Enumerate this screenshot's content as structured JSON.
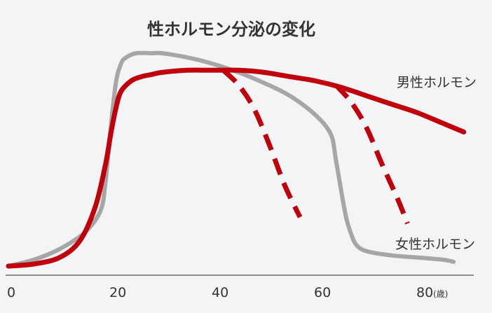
{
  "chart_data": {
    "type": "line",
    "title": "性ホルモン分泌の変化",
    "xlabel": "",
    "ylabel": "",
    "x_unit": "(歳)",
    "xlim": [
      0,
      90
    ],
    "ylim": [
      0,
      100
    ],
    "x_ticks": [
      "0",
      "20",
      "40",
      "60",
      "80"
    ],
    "y_axis_shown": false,
    "grid": false,
    "colors": {
      "female": "#a6a6a6",
      "male": "#c0000a",
      "background": "#f3f4f6",
      "axis": "#555555"
    },
    "series": [
      {
        "name": "女性ホルモン",
        "style": "solid",
        "x": [
          0,
          5,
          10,
          15,
          18,
          19,
          20,
          21,
          22,
          23,
          25,
          28,
          30,
          35,
          40,
          45,
          50,
          55,
          60,
          63,
          64,
          65,
          66,
          67,
          68,
          70,
          75,
          80,
          85,
          87
        ],
        "y": [
          0,
          3,
          8,
          16,
          26,
          40,
          65,
          86,
          95,
          98,
          100,
          100,
          100,
          98,
          95,
          91,
          86,
          80,
          71,
          62,
          50,
          36,
          23,
          15,
          10,
          7,
          5,
          4,
          3,
          2
        ]
      },
      {
        "name": "男性ホルモン",
        "style": "solid",
        "x": [
          0,
          5,
          10,
          14,
          17,
          19,
          20,
          21,
          22,
          24,
          26,
          28,
          30,
          35,
          40,
          45,
          50,
          55,
          60,
          65,
          70,
          75,
          80,
          85,
          89
        ],
        "y": [
          0,
          1,
          4,
          12,
          28,
          48,
          62,
          74,
          82,
          87,
          89,
          90,
          91,
          92,
          92,
          92,
          91,
          89,
          87,
          84,
          80,
          76,
          72,
          67,
          63
        ]
      },
      {
        "name": "",
        "style": "dashed",
        "x": [
          42,
          45,
          48,
          51,
          54,
          57
        ],
        "y": [
          92,
          85,
          74,
          57,
          38,
          23
        ]
      },
      {
        "name": "",
        "style": "dashed",
        "x": [
          64,
          67,
          70,
          73,
          76,
          78
        ],
        "y": [
          85,
          77,
          65,
          48,
          32,
          20
        ]
      }
    ]
  }
}
